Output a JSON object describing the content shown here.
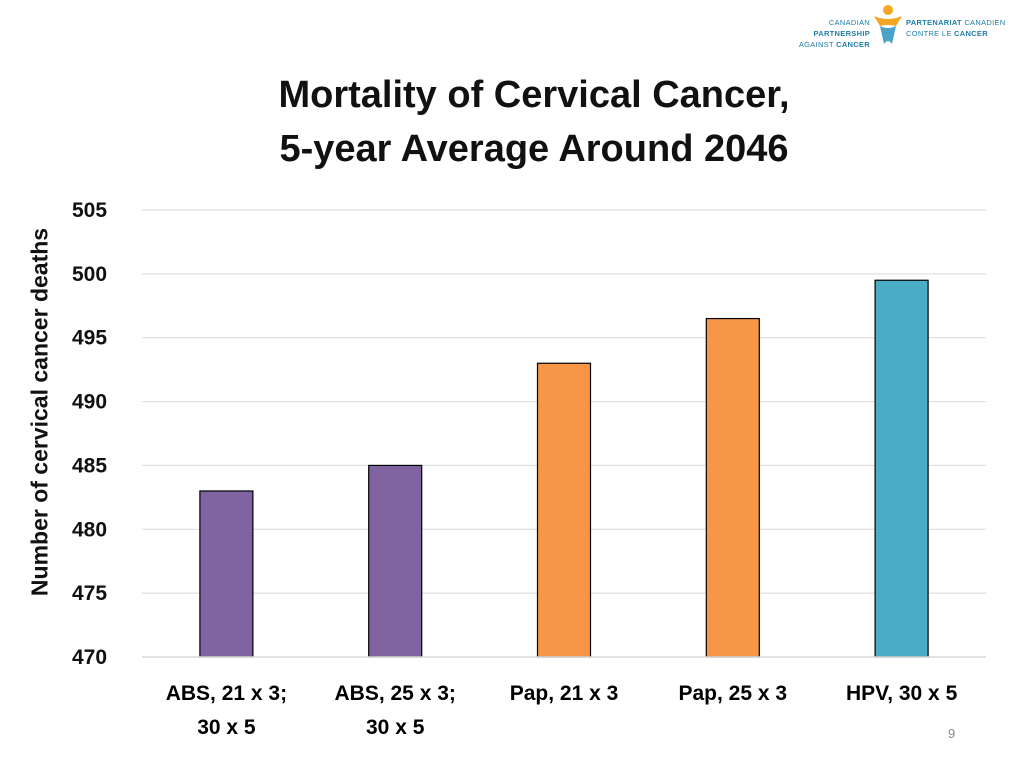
{
  "logo": {
    "english": [
      "CANADIAN PARTNERSHIP",
      "AGAINST CANCER"
    ],
    "french": [
      "PARTENARIAT CANADIEN",
      "CONTRE LE CANCER"
    ]
  },
  "colors": {
    "purple": "#8064a2",
    "orange": "#f79646",
    "teal": "#4bacc6",
    "grid": "#d9d9d9"
  },
  "chart_data": {
    "type": "bar",
    "title": "Mortality of Cervical Cancer,\n5-year Average Around 2046",
    "title_lines": [
      "Mortality of Cervical Cancer,",
      "5-year Average Around 2046"
    ],
    "ylabel": "Number of cervical cancer deaths",
    "xlabel": "",
    "ylim": [
      470,
      505
    ],
    "yticks": [
      470,
      475,
      480,
      485,
      490,
      495,
      500,
      505
    ],
    "grid": true,
    "categories": [
      [
        "ABS, 21 x 3;",
        "30 x 5"
      ],
      [
        "ABS, 25 x 3;",
        "30 x 5"
      ],
      [
        "Pap, 21 x 3"
      ],
      [
        "Pap, 25 x 3"
      ],
      [
        "HPV, 30 x 5"
      ]
    ],
    "values": [
      483,
      485,
      493,
      496.5,
      499.5
    ],
    "bar_colors": [
      "#8064a2",
      "#8064a2",
      "#f79646",
      "#f79646",
      "#4bacc6"
    ]
  },
  "page_number": "9"
}
